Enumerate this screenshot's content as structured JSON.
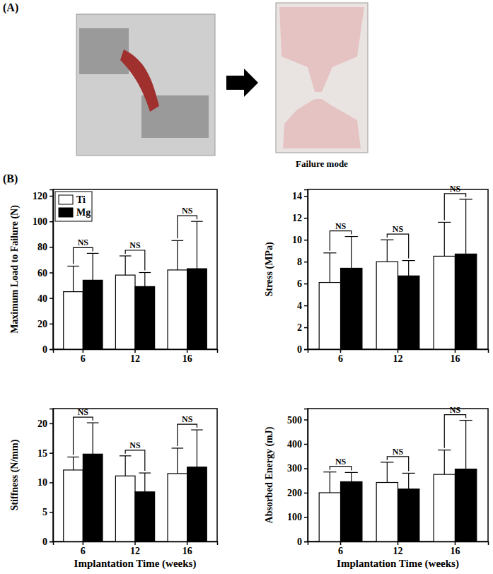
{
  "panel_labels": [
    "(A)",
    "(B)"
  ],
  "photo_caption": "Failure mode",
  "chart_data": [
    {
      "type": "bar",
      "y_label": "Maximum Load to Failure (N)",
      "categories": [
        "6",
        "12",
        "16"
      ],
      "series": [
        {
          "name": "Ti",
          "color": "#ffffff",
          "values": [
            45,
            58,
            62
          ],
          "errors": [
            20,
            15,
            23
          ]
        },
        {
          "name": "Mg",
          "color": "#000000",
          "values": [
            54,
            49,
            63
          ],
          "errors": [
            21,
            11,
            37
          ]
        }
      ],
      "ylim": [
        0,
        125
      ],
      "yticks": [
        0,
        20,
        40,
        60,
        80,
        100,
        120
      ],
      "legend": "upper left",
      "annotations": [
        {
          "text": "NS",
          "category": "6"
        },
        {
          "text": "NS",
          "category": "12"
        },
        {
          "text": "NS",
          "category": "16"
        }
      ]
    },
    {
      "type": "bar",
      "y_label": "Stress (MPa)",
      "categories": [
        "6",
        "12",
        "16"
      ],
      "series": [
        {
          "name": "Ti",
          "color": "#ffffff",
          "values": [
            6.1,
            8.0,
            8.5
          ],
          "errors": [
            2.7,
            2.0,
            3.1
          ]
        },
        {
          "name": "Mg",
          "color": "#000000",
          "values": [
            7.4,
            6.7,
            8.7
          ],
          "errors": [
            2.9,
            1.4,
            5.0
          ]
        }
      ],
      "ylim": [
        0,
        14.6
      ],
      "yticks": [
        0,
        2,
        4,
        6,
        8,
        10,
        12,
        14
      ],
      "annotations": [
        {
          "text": "NS",
          "category": "6"
        },
        {
          "text": "NS",
          "category": "12"
        },
        {
          "text": "NS",
          "category": "16"
        }
      ]
    },
    {
      "type": "bar",
      "y_label": "Stiffness (N/mm)",
      "x_label": "Implantation Time (weeks)",
      "categories": [
        "6",
        "12",
        "16"
      ],
      "series": [
        {
          "name": "Ti",
          "color": "#ffffff",
          "values": [
            12.1,
            11.1,
            11.5
          ],
          "errors": [
            2.2,
            3.4,
            4.3
          ]
        },
        {
          "name": "Mg",
          "color": "#000000",
          "values": [
            14.8,
            8.4,
            12.6
          ],
          "errors": [
            5.3,
            3.2,
            6.3
          ]
        }
      ],
      "ylim": [
        0,
        22.5
      ],
      "yticks": [
        0,
        5,
        10,
        15,
        20
      ],
      "annotations": [
        {
          "text": "NS",
          "category": "6"
        },
        {
          "text": "NS",
          "category": "12"
        },
        {
          "text": "NS",
          "category": "16"
        }
      ]
    },
    {
      "type": "bar",
      "y_label": "Absorbed Energy (mJ)",
      "x_label": "Implantation Time (weeks)",
      "categories": [
        "6",
        "12",
        "16"
      ],
      "series": [
        {
          "name": "Ti",
          "color": "#ffffff",
          "values": [
            200,
            242,
            275
          ],
          "errors": [
            85,
            83,
            100
          ]
        },
        {
          "name": "Mg",
          "color": "#000000",
          "values": [
            245,
            215,
            297
          ],
          "errors": [
            38,
            65,
            200
          ]
        }
      ],
      "ylim": [
        0,
        545
      ],
      "yticks": [
        0,
        100,
        200,
        300,
        400,
        500
      ],
      "annotations": [
        {
          "text": "NS",
          "category": "6"
        },
        {
          "text": "NS",
          "category": "12"
        },
        {
          "text": "NS",
          "category": "16"
        }
      ]
    }
  ]
}
